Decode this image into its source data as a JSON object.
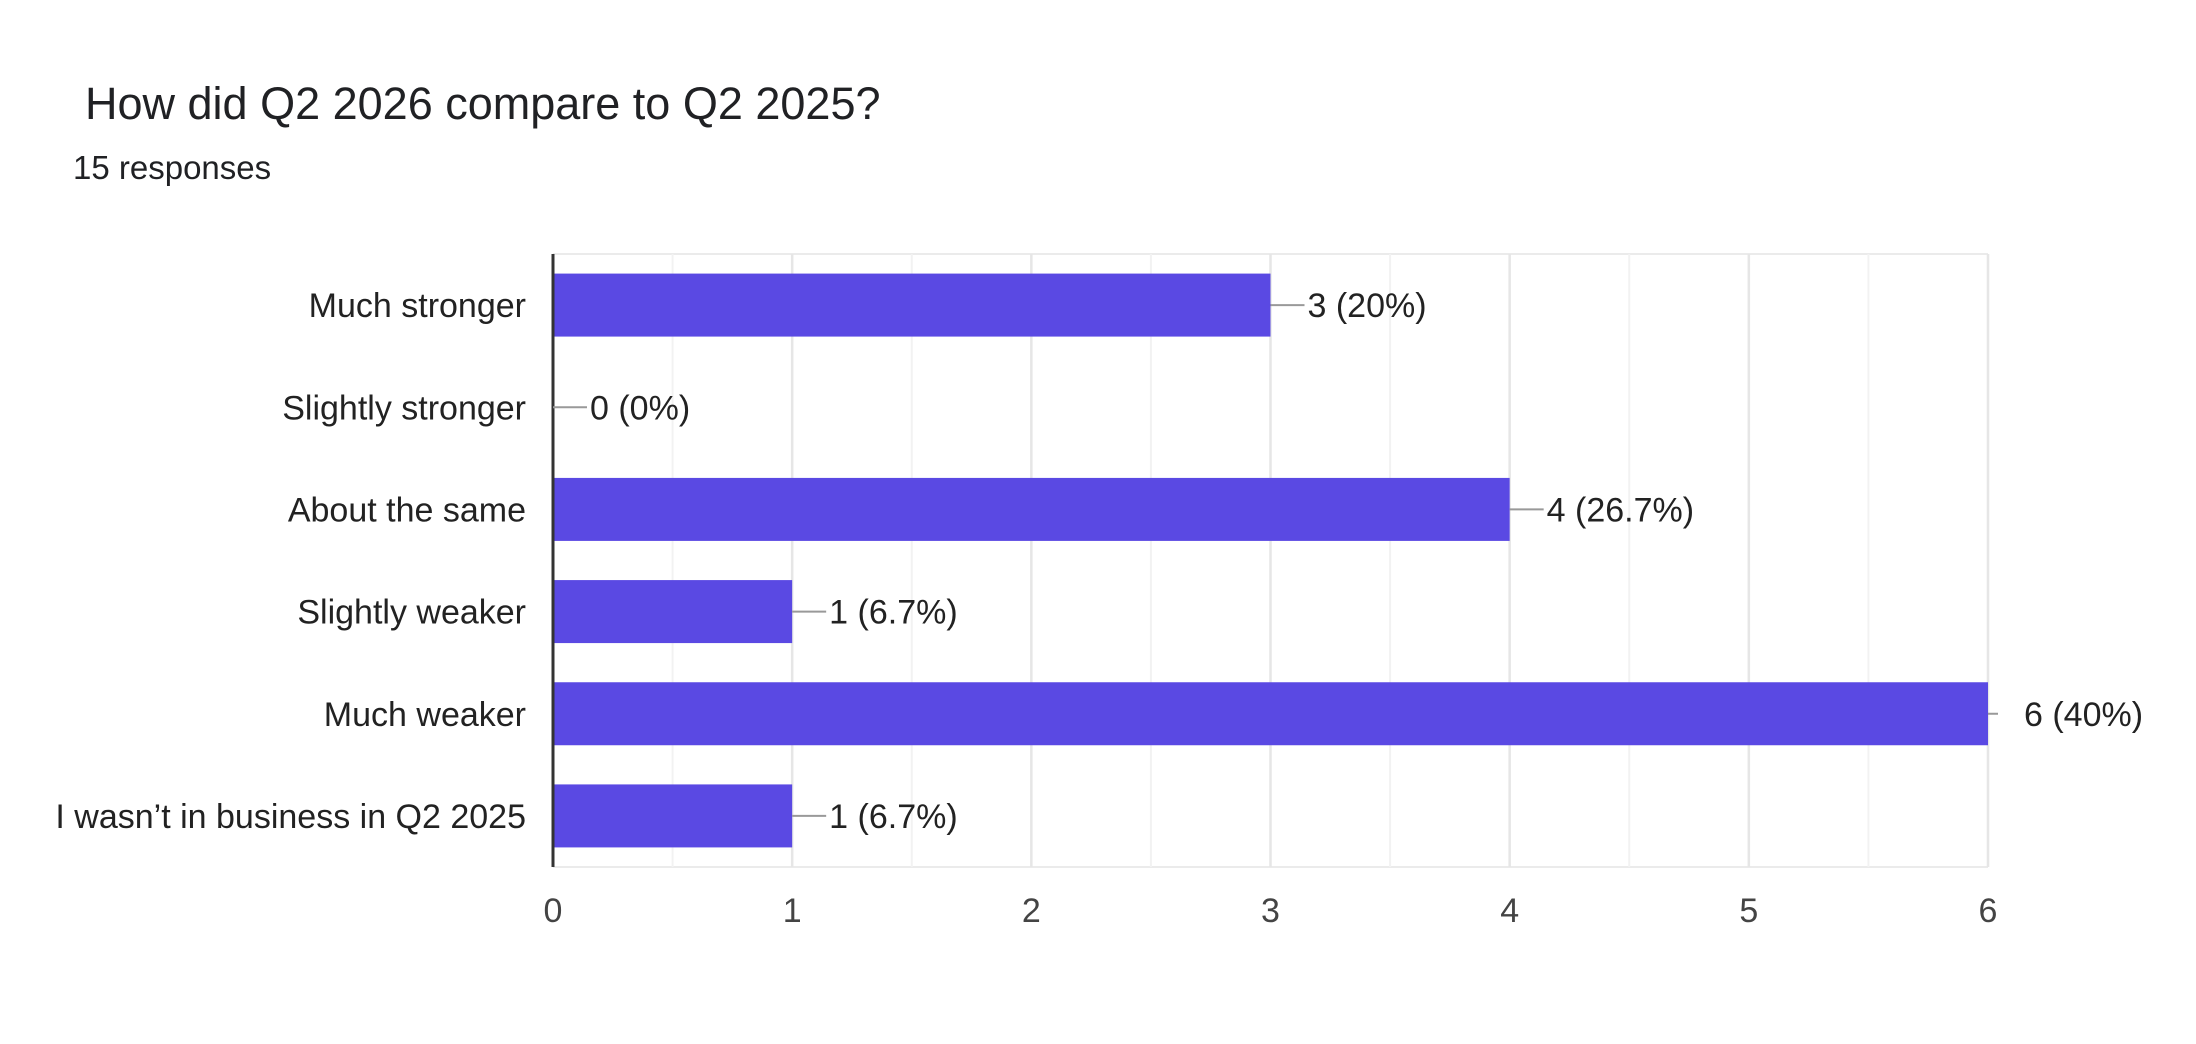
{
  "question": {
    "title": "How did Q2 2026 compare to Q2 2025?",
    "responses": "15 responses"
  },
  "colors": {
    "bar": "#5a49e3",
    "grid": "#ebebeb",
    "axis": "#333333",
    "leader": "#999999"
  },
  "chart_data": {
    "type": "bar",
    "orientation": "horizontal",
    "title": "How did Q2 2026 compare to Q2 2025?",
    "subtitle": "15 responses",
    "categories": [
      "Much stronger",
      "Slightly stronger",
      "About the same",
      "Slightly weaker",
      "Much weaker",
      "I wasn’t in business in Q2 2025"
    ],
    "values": [
      3,
      0,
      4,
      1,
      6,
      1
    ],
    "data_labels": [
      "3 (20%)",
      "0 (0%)",
      "4 (26.7%)",
      "1 (6.7%)",
      "6 (40%)",
      "1 (6.7%)"
    ],
    "xlim": [
      0,
      6
    ],
    "xticks": [
      "0",
      "1",
      "2",
      "3",
      "4",
      "5",
      "6"
    ],
    "grid": true,
    "legend": "none"
  }
}
